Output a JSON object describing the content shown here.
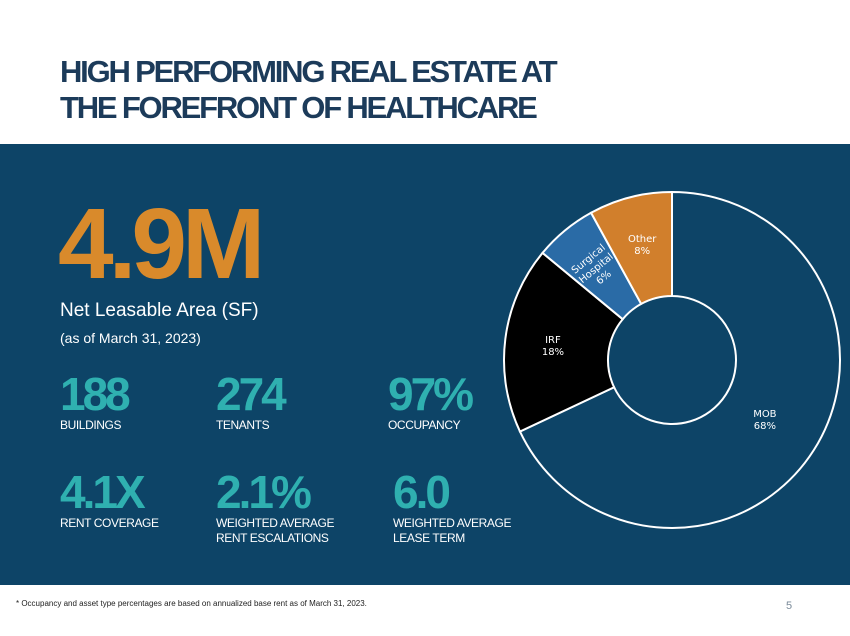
{
  "title_lines": [
    "HIGH PERFORMING REAL ESTATE AT",
    "THE FOREFRONT OF HEALTHCARE"
  ],
  "headline": {
    "value": "4.9M",
    "label": "Net Leasable Area (SF)",
    "as_of": "(as of March 31, 2023)"
  },
  "stats": [
    {
      "value": "188",
      "label": "BUILDINGS"
    },
    {
      "value": "274",
      "label": "TENANTS"
    },
    {
      "value": "97%",
      "label": "OCCUPANCY"
    },
    {
      "value": "4.1X",
      "label": "RENT COVERAGE"
    },
    {
      "value": "2.1%",
      "label": "WEIGHTED AVERAGE\nRENT ESCALATIONS"
    },
    {
      "value": "6.0",
      "label": "WEIGHTED AVERAGE\nLEASE TERM"
    }
  ],
  "chart_data": {
    "type": "pie",
    "donut": true,
    "start_category": "MOB",
    "direction": "clockwise",
    "slices": [
      {
        "name": "MOB",
        "label_name": "MOB",
        "label_pct": "68%",
        "value": 68,
        "color": "#0d4467",
        "label_color": "#ffffff"
      },
      {
        "name": "IRF",
        "label_name": "IRF",
        "label_pct": "18%",
        "value": 18,
        "color": "#000000",
        "label_color": "#ffffff"
      },
      {
        "name": "Surgical Hospital",
        "label_name": "Surgical\nHospital",
        "label_pct": "6%",
        "value": 6,
        "color": "#2a6ba6",
        "label_color": "#ffffff"
      },
      {
        "name": "Other",
        "label_name": "Other",
        "label_pct": "8%",
        "value": 8,
        "color": "#d17f2c",
        "label_color": "#ffffff"
      }
    ]
  },
  "footnote": "* Occupancy and asset type percentages are based on annualized base rent as of March 31, 2023.",
  "page_number": "5"
}
